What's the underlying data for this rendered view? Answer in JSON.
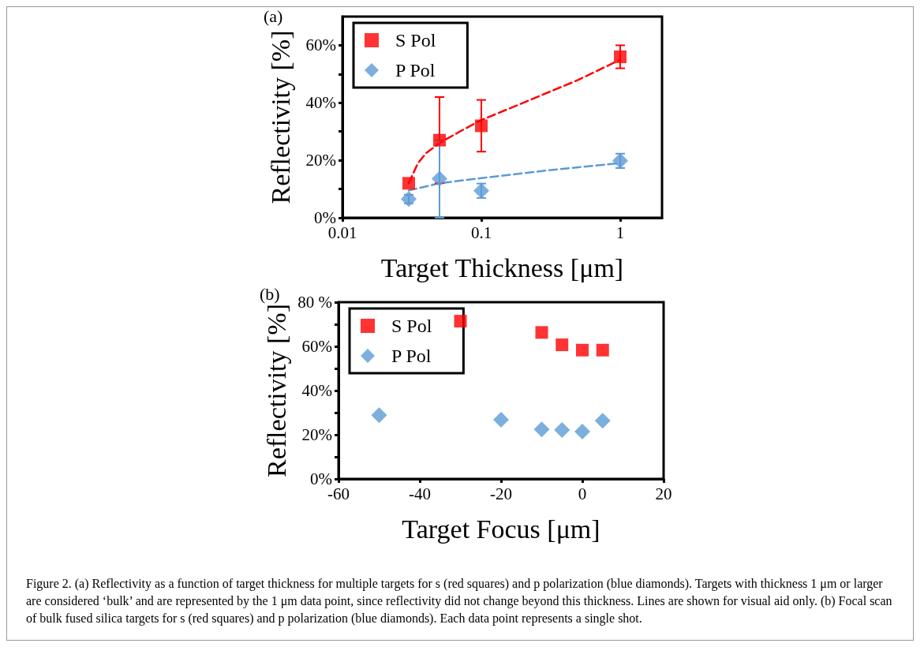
{
  "chart_data": [
    {
      "type": "scatter",
      "annotations": [
        "(a)"
      ],
      "xlabel": "Target Thickness [μm]",
      "ylabel": "Reflectivity [%]",
      "log": "x",
      "xlim": [
        0.01,
        2
      ],
      "xticks": [
        0.01,
        0.1,
        1
      ],
      "ylim": [
        0,
        70
      ],
      "yticks": [
        {
          "value": 0,
          "label": "0%"
        },
        {
          "value": 10,
          "label": null
        },
        {
          "value": 20,
          "label": "20%"
        },
        {
          "value": 30,
          "label": null
        },
        {
          "value": 40,
          "label": "40%"
        },
        {
          "value": 50,
          "label": null
        },
        {
          "value": 60,
          "label": "60%"
        }
      ],
      "grid": false,
      "legend": "top left",
      "series": [
        {
          "name": "S Pol",
          "color": "#ff0000",
          "marker": "square",
          "x": [
            0.03,
            0.05,
            0.1,
            1
          ],
          "values": [
            12,
            27,
            32,
            56
          ],
          "errors": [
            null,
            15,
            9,
            4
          ]
        },
        {
          "name": "P Pol",
          "color": "#5b9bd5",
          "marker": "diamond",
          "x": [
            0.03,
            0.05,
            0.1,
            1
          ],
          "values": [
            6.5,
            13.6,
            9.4,
            19.8
          ],
          "errors": [
            1.5,
            [
              0,
              27
            ],
            2.5,
            2.5
          ]
        },
        {
          "type": "line",
          "color": "#ff0000",
          "marker": "none",
          "line_style": "dashed",
          "x": [
            0.03,
            0.032,
            0.035,
            0.04,
            0.05,
            0.07,
            0.1,
            0.2,
            0.5,
            1
          ],
          "values": [
            12,
            15,
            19,
            22.5,
            26,
            30,
            34,
            40,
            48,
            55
          ]
        },
        {
          "type": "line",
          "color": "#5b9bd5",
          "marker": "none",
          "line_style": "dashed",
          "x": [
            0.03,
            0.05,
            0.1,
            0.3,
            1
          ],
          "values": [
            9.5,
            12,
            13.8,
            16.5,
            19
          ]
        }
      ]
    },
    {
      "type": "scatter",
      "annotations": [
        "(b)",
        "Figure 2. (a) Reflectivity as a function of target thickness for multiple targets for s (red squares) and p polarization (blue diamonds). Targets with thickness 1 μm or larger are considered ‘bulk’ and are represented by the 1 μm data point, since reflectivity did not change beyond this thickness. Lines are shown for visual aid only. (b) Focal scan of bulk fused silica targets for s (red squares) and p polarization (blue diamonds). Each data point represents a single shot."
      ],
      "xlabel": "Target Focus [μm]",
      "ylabel": "Reflectivity [%]",
      "xlim": [
        -60,
        20
      ],
      "xticks": [
        -60,
        -40,
        -20,
        0,
        20
      ],
      "ylim": [
        0,
        80
      ],
      "yticks": [
        {
          "value": 0,
          "label": "0%"
        },
        {
          "value": 10,
          "label": null
        },
        {
          "value": 20,
          "label": "20%"
        },
        {
          "value": 30,
          "label": null
        },
        {
          "value": 40,
          "label": "40%"
        },
        {
          "value": 50,
          "label": null
        },
        {
          "value": 60,
          "label": "60%"
        },
        {
          "value": 70,
          "label": null
        },
        {
          "value": 80,
          "label": "80 %"
        }
      ],
      "grid": false,
      "legend": "top left",
      "series": [
        {
          "name": "S Pol",
          "color": "#ff0000",
          "marker": "square",
          "x": [
            -30,
            -10,
            -5,
            0,
            5
          ],
          "values": [
            71.4,
            66.3,
            60.7,
            58.3,
            58.3
          ]
        },
        {
          "name": "P Pol",
          "color": "#5b9bd5",
          "marker": "diamond",
          "x": [
            -50,
            -20,
            -10,
            -5,
            0,
            5
          ],
          "values": [
            28.8,
            26.8,
            22.4,
            22.1,
            21.4,
            26.3
          ]
        }
      ]
    }
  ]
}
